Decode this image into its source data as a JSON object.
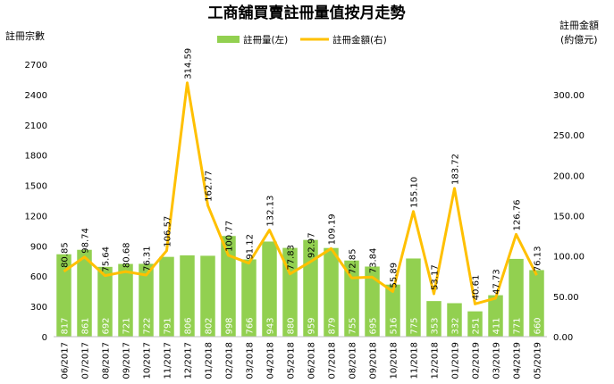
{
  "chart_data": {
    "type": "bar",
    "title": "工商舖買賣註冊量值按月走勢",
    "y_left_label": "註冊宗數",
    "y_right_label_line1": "註冊金額",
    "y_right_label_line2": "(約億元)",
    "categories": [
      "06/2017",
      "07/2017",
      "08/2017",
      "09/2017",
      "10/2017",
      "11/2017",
      "12/2017",
      "01/2018",
      "02/2018",
      "03/2018",
      "04/2018",
      "05/2018",
      "06/2018",
      "07/2018",
      "08/2018",
      "09/2018",
      "10/2018",
      "11/2018",
      "12/2018",
      "01/2019",
      "02/2019",
      "03/2019",
      "04/2019",
      "05/2019"
    ],
    "series": [
      {
        "name": "註冊量(左)",
        "type": "bar",
        "axis": "left",
        "color": "#92d050",
        "values": [
          817,
          861,
          692,
          721,
          722,
          791,
          806,
          802,
          998,
          766,
          943,
          880,
          959,
          879,
          755,
          695,
          516,
          775,
          353,
          332,
          251,
          411,
          771,
          660
        ],
        "labels": [
          "817",
          "861",
          "692",
          "721",
          "722",
          "791",
          "806",
          "802",
          "998",
          "766",
          "943",
          "880",
          "959",
          "879",
          "755",
          "695",
          "516",
          "775",
          "353",
          "332",
          "251",
          "411",
          "771",
          "660"
        ]
      },
      {
        "name": "註冊金額(右)",
        "type": "line",
        "axis": "right",
        "color": "#ffc000",
        "values": [
          80.85,
          98.74,
          75.64,
          80.68,
          76.31,
          106.57,
          314.59,
          162.77,
          100.77,
          91.12,
          132.13,
          77.83,
          92.97,
          109.19,
          72.85,
          73.84,
          55.89,
          155.1,
          53.17,
          183.72,
          40.61,
          47.73,
          126.76,
          76.13
        ],
        "labels": [
          "80.85",
          "98.74",
          "75.64",
          "80.68",
          "76.31",
          "106.57",
          "314.59",
          "162.77",
          "100.77",
          "91.12",
          "132.13",
          "77.83",
          "92.97",
          "109.19",
          "72.85",
          "73.84",
          "55.89",
          "155.10",
          "53.17",
          "183.72",
          "40.61",
          "47.73",
          "126.76",
          "76.13"
        ]
      }
    ],
    "y_left": {
      "min": 0,
      "max": 2700,
      "ticks": [
        "0",
        "300",
        "600",
        "900",
        "1200",
        "1500",
        "1800",
        "2100",
        "2400",
        "2700"
      ]
    },
    "y_right": {
      "min": 0,
      "max": 337.5,
      "ticks": [
        "0.00",
        "50.00",
        "100.00",
        "150.00",
        "200.00",
        "250.00",
        "300.00"
      ]
    },
    "grid": false,
    "legend_position": "top"
  }
}
